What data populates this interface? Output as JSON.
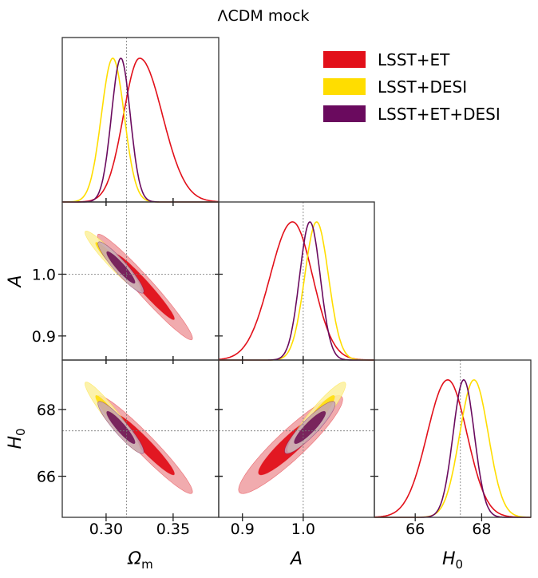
{
  "chart_data": {
    "type": "corner",
    "title": "ΛCDM mock",
    "parameters": [
      {
        "key": "om",
        "label": "Ω",
        "label_sub": "m",
        "range": [
          0.2673,
          0.384
        ],
        "ticks": [
          0.3,
          0.35
        ],
        "tick_labels": [
          "0.30",
          "0.35"
        ],
        "fiducial": 0.3153
      },
      {
        "key": "A",
        "label": "A",
        "label_sub": "",
        "range": [
          0.861,
          1.117
        ],
        "ticks": [
          0.9,
          1.0
        ],
        "tick_labels": [
          "0.9",
          "1.0"
        ],
        "fiducial": 1.0
      },
      {
        "key": "H0",
        "label": "H",
        "label_sub": "0",
        "range": [
          64.77,
          69.48
        ],
        "ticks": [
          66,
          68
        ],
        "tick_labels": [
          "66",
          "68"
        ],
        "fiducial": 67.36
      }
    ],
    "legend": {
      "position": "top-right"
    },
    "series": [
      {
        "name": "LSST+ET",
        "color": "#e2101a",
        "fill95": "#ef9ca0",
        "fill68": "#e0101a",
        "marginals": {
          "om": {
            "peak": 0.325,
            "sigma_lo": 0.012,
            "sigma_hi": 0.017
          },
          "A": {
            "peak": 0.9825,
            "sigma_lo": 0.037,
            "sigma_hi": 0.033
          },
          "H0": {
            "peak": 66.98,
            "sigma_lo": 0.62,
            "sigma_hi": 0.58
          }
        },
        "correlations": {
          "om-A": -0.97,
          "om-H0": -0.96,
          "A-H0": 0.92
        }
      },
      {
        "name": "LSST+DESI",
        "color": "#ffdd00",
        "fill95": "#fcf09e",
        "fill68": "#ffde14",
        "marginals": {
          "om": {
            "peak": 0.305,
            "sigma_lo": 0.0085,
            "sigma_hi": 0.0085
          },
          "A": {
            "peak": 1.022,
            "sigma_lo": 0.0196,
            "sigma_hi": 0.0196
          },
          "H0": {
            "peak": 67.77,
            "sigma_lo": 0.43,
            "sigma_hi": 0.43
          }
        },
        "correlations": {
          "om-A": -0.95,
          "om-H0": -0.95,
          "A-H0": 0.93
        }
      },
      {
        "name": "LSST+ET+DESI",
        "color": "#6a0a5e",
        "fill95": "#c6a5b6",
        "fill68": "#741c58",
        "marginals": {
          "om": {
            "peak": 0.311,
            "sigma_lo": 0.007,
            "sigma_hi": 0.007
          },
          "A": {
            "peak": 1.011,
            "sigma_lo": 0.017,
            "sigma_hi": 0.017
          },
          "H0": {
            "peak": 67.46,
            "sigma_lo": 0.32,
            "sigma_hi": 0.32
          }
        },
        "correlations": {
          "om-A": -0.93,
          "om-H0": -0.92,
          "A-H0": 0.9
        }
      }
    ]
  }
}
